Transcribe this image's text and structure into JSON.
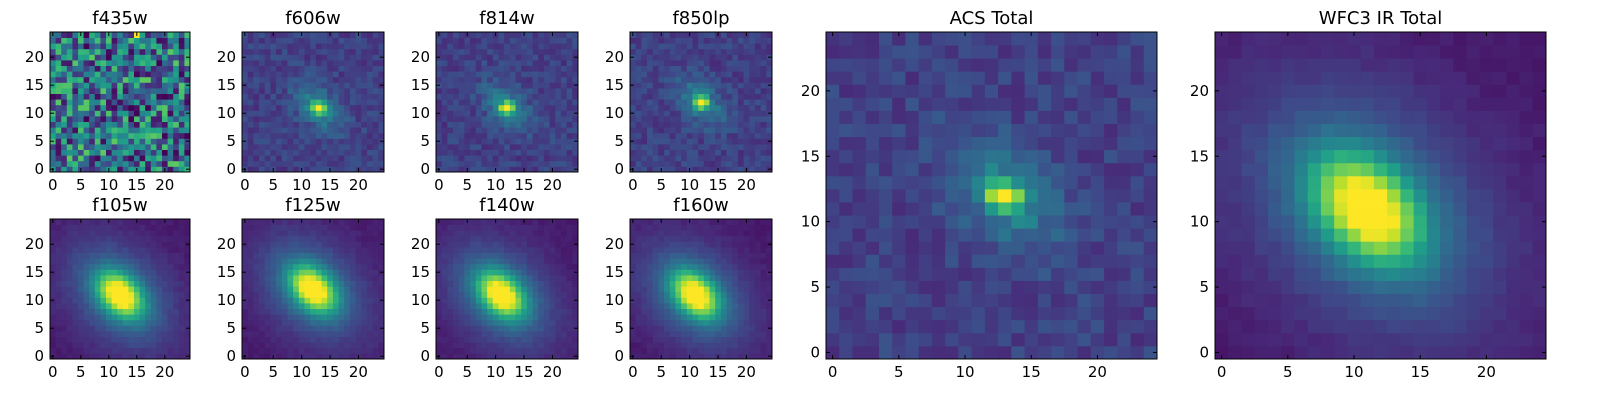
{
  "chart_data": [
    {
      "type": "heatmap",
      "title": "f435w",
      "grid": false,
      "colormap": "viridis",
      "xlim": [
        0,
        24
      ],
      "ylim": [
        0,
        24
      ],
      "xticks": [
        "0",
        "5",
        "10",
        "15",
        "20"
      ],
      "yticks": [
        "0",
        "5",
        "10",
        "15",
        "20"
      ],
      "peak": {
        "x": 15,
        "y": 24
      },
      "profile": "noise"
    },
    {
      "type": "heatmap",
      "title": "f606w",
      "grid": false,
      "colormap": "viridis",
      "xlim": [
        0,
        24
      ],
      "ylim": [
        0,
        24
      ],
      "xticks": [
        "0",
        "5",
        "10",
        "15",
        "20"
      ],
      "yticks": [
        "0",
        "5",
        "10",
        "15",
        "20"
      ],
      "peak": {
        "x": 13,
        "y": 11
      },
      "profile": "compact"
    },
    {
      "type": "heatmap",
      "title": "f814w",
      "grid": false,
      "colormap": "viridis",
      "xlim": [
        0,
        24
      ],
      "ylim": [
        0,
        24
      ],
      "xticks": [
        "0",
        "5",
        "10",
        "15",
        "20"
      ],
      "yticks": [
        "0",
        "5",
        "10",
        "15",
        "20"
      ],
      "peak": {
        "x": 12,
        "y": 11
      },
      "profile": "compact"
    },
    {
      "type": "heatmap",
      "title": "f850lp",
      "grid": false,
      "colormap": "viridis",
      "xlim": [
        0,
        24
      ],
      "ylim": [
        0,
        24
      ],
      "xticks": [
        "0",
        "5",
        "10",
        "15",
        "20"
      ],
      "yticks": [
        "0",
        "5",
        "10",
        "15",
        "20"
      ],
      "peak": {
        "x": 12,
        "y": 12
      },
      "profile": "compact"
    },
    {
      "type": "heatmap",
      "title": "f105w",
      "grid": false,
      "colormap": "viridis",
      "xlim": [
        0,
        24
      ],
      "ylim": [
        0,
        24
      ],
      "xticks": [
        "0",
        "5",
        "10",
        "15",
        "20"
      ],
      "yticks": [
        "0",
        "5",
        "10",
        "15",
        "20"
      ],
      "peak": {
        "x": 12,
        "y": 11
      },
      "profile": "extended"
    },
    {
      "type": "heatmap",
      "title": "f125w",
      "grid": false,
      "colormap": "viridis",
      "xlim": [
        0,
        24
      ],
      "ylim": [
        0,
        24
      ],
      "xticks": [
        "0",
        "5",
        "10",
        "15",
        "20"
      ],
      "yticks": [
        "0",
        "5",
        "10",
        "15",
        "20"
      ],
      "peak": {
        "x": 12,
        "y": 12
      },
      "profile": "extended"
    },
    {
      "type": "heatmap",
      "title": "f140w",
      "grid": false,
      "colormap": "viridis",
      "xlim": [
        0,
        24
      ],
      "ylim": [
        0,
        24
      ],
      "xticks": [
        "0",
        "5",
        "10",
        "15",
        "20"
      ],
      "yticks": [
        "0",
        "5",
        "10",
        "15",
        "20"
      ],
      "peak": {
        "x": 11,
        "y": 11
      },
      "profile": "extended"
    },
    {
      "type": "heatmap",
      "title": "f160w",
      "grid": false,
      "colormap": "viridis",
      "xlim": [
        0,
        24
      ],
      "ylim": [
        0,
        24
      ],
      "xticks": [
        "0",
        "5",
        "10",
        "15",
        "20"
      ],
      "yticks": [
        "0",
        "5",
        "10",
        "15",
        "20"
      ],
      "peak": {
        "x": 11,
        "y": 11
      },
      "profile": "extended"
    },
    {
      "type": "heatmap",
      "title": "ACS Total",
      "grid": false,
      "colormap": "viridis",
      "xlim": [
        0,
        24
      ],
      "ylim": [
        0,
        24
      ],
      "xticks": [
        "0",
        "5",
        "10",
        "15",
        "20"
      ],
      "yticks": [
        "0",
        "5",
        "10",
        "15",
        "20"
      ],
      "peak": {
        "x": 13,
        "y": 12
      },
      "profile": "compact"
    },
    {
      "type": "heatmap",
      "title": "WFC3 IR Total",
      "grid": false,
      "colormap": "viridis",
      "xlim": [
        0,
        24
      ],
      "ylim": [
        0,
        24
      ],
      "xticks": [
        "0",
        "5",
        "10",
        "15",
        "20"
      ],
      "yticks": [
        "0",
        "5",
        "10",
        "15",
        "20"
      ],
      "peak": {
        "x": 11,
        "y": 11
      },
      "profile": "extended"
    }
  ]
}
